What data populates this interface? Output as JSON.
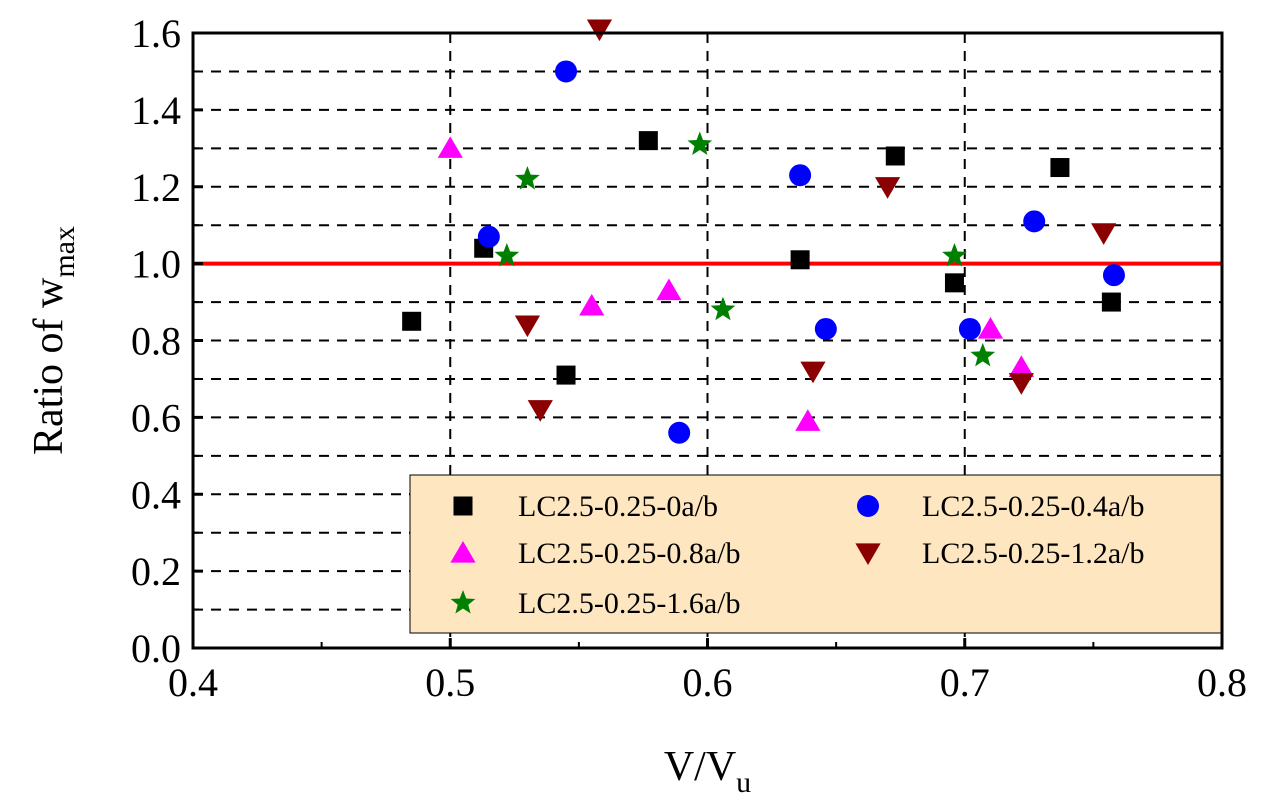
{
  "chart_data": {
    "type": "scatter",
    "xlabel": {
      "main": "V/V",
      "sub": "u"
    },
    "ylabel": {
      "main": "Ratio of w",
      "sub": "max"
    },
    "xlim": [
      0.4,
      0.8
    ],
    "ylim": [
      0.0,
      1.6
    ],
    "xticks": [
      "0.4",
      "0.5",
      "0.6",
      "0.7",
      "0.8"
    ],
    "yticks": [
      "0.0",
      "0.2",
      "0.4",
      "0.6",
      "0.8",
      "1.0",
      "1.2",
      "1.4",
      "1.6"
    ],
    "x_gridlines": [
      0.5,
      0.6,
      0.7
    ],
    "y_gridlines": [
      0.1,
      0.2,
      0.3,
      0.4,
      0.5,
      0.6,
      0.7,
      0.8,
      0.9,
      1.1,
      1.2,
      1.3,
      1.4,
      1.5
    ],
    "grid": "dashed",
    "reference_line": {
      "y": 1.0,
      "color": "#ff0000"
    },
    "legend": {
      "position": "bottom-right",
      "background": "#fde6c0"
    },
    "series": [
      {
        "name": "LC2.5-0.25-0a/b",
        "marker": "square",
        "color": "#000000",
        "points": [
          [
            0.485,
            0.85
          ],
          [
            0.513,
            1.04
          ],
          [
            0.545,
            0.71
          ],
          [
            0.577,
            1.32
          ],
          [
            0.636,
            1.01
          ],
          [
            0.673,
            1.28
          ],
          [
            0.696,
            0.95
          ],
          [
            0.737,
            1.25
          ],
          [
            0.757,
            0.9
          ]
        ]
      },
      {
        "name": "LC2.5-0.25-0.4a/b",
        "marker": "circle",
        "color": "#0000ff",
        "points": [
          [
            0.515,
            1.07
          ],
          [
            0.545,
            1.5
          ],
          [
            0.589,
            0.56
          ],
          [
            0.636,
            1.23
          ],
          [
            0.646,
            0.83
          ],
          [
            0.702,
            0.83
          ],
          [
            0.727,
            1.11
          ],
          [
            0.758,
            0.97
          ]
        ]
      },
      {
        "name": "LC2.5-0.25-0.8a/b",
        "marker": "triangle-up",
        "color": "#ff00ff",
        "points": [
          [
            0.5,
            1.3
          ],
          [
            0.555,
            0.89
          ],
          [
            0.585,
            0.93
          ],
          [
            0.639,
            0.59
          ],
          [
            0.71,
            0.83
          ],
          [
            0.722,
            0.73
          ]
        ]
      },
      {
        "name": "LC2.5-0.25-1.2a/b",
        "marker": "triangle-down",
        "color": "#8b0000",
        "points": [
          [
            0.53,
            0.84
          ],
          [
            0.535,
            0.62
          ],
          [
            0.558,
            1.61
          ],
          [
            0.641,
            0.72
          ],
          [
            0.67,
            1.2
          ],
          [
            0.722,
            0.69
          ],
          [
            0.754,
            1.08
          ]
        ]
      },
      {
        "name": "LC2.5-0.25-1.6a/b",
        "marker": "star",
        "color": "#008000",
        "points": [
          [
            0.522,
            1.02
          ],
          [
            0.53,
            1.22
          ],
          [
            0.597,
            1.31
          ],
          [
            0.606,
            0.88
          ],
          [
            0.696,
            1.02
          ],
          [
            0.707,
            0.76
          ]
        ]
      }
    ]
  }
}
